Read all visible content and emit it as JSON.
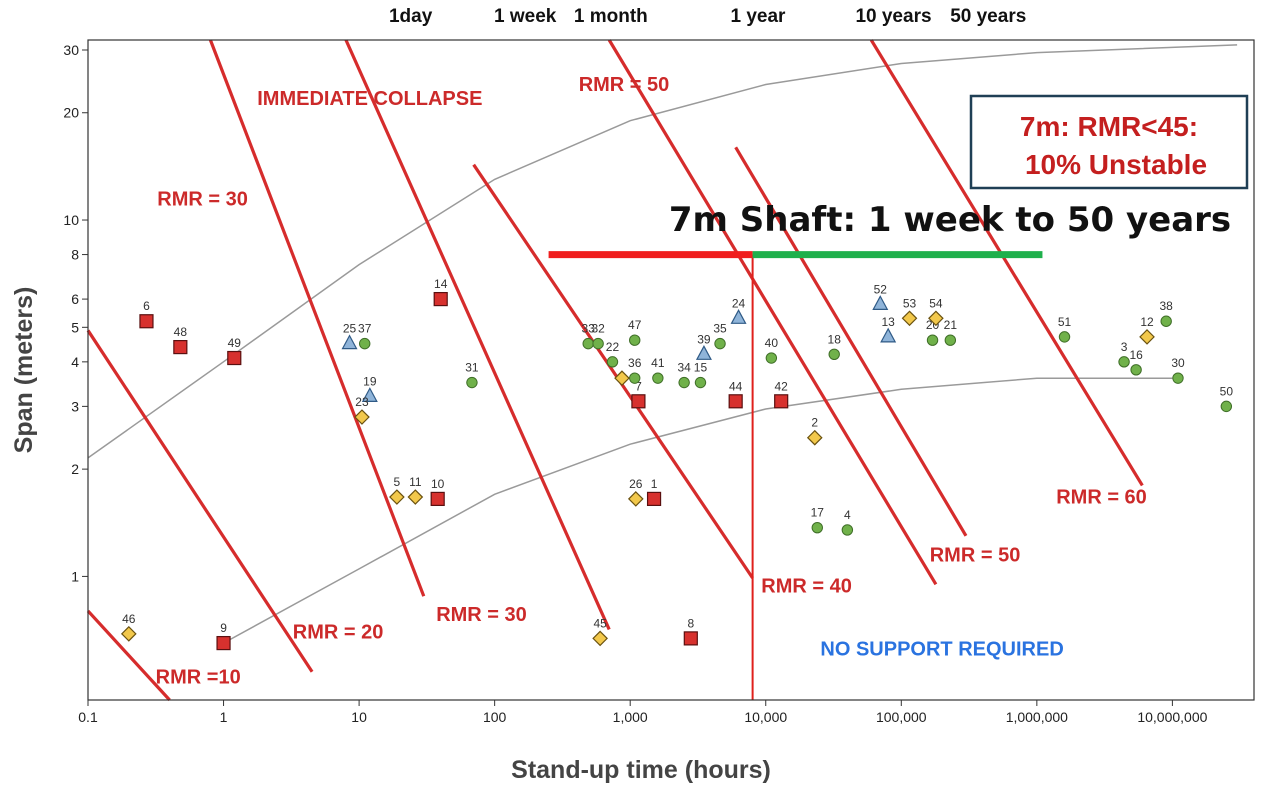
{
  "chart_data": {
    "type": "scatter",
    "xlabel": "Stand-up time (hours)",
    "ylabel": "Span (meters)",
    "xscale": "log",
    "yscale": "log",
    "xlim": [
      0.1,
      40000000
    ],
    "ylim": [
      0.45,
      32
    ],
    "x_ticks": [
      {
        "v": 0.1,
        "label": "0.1"
      },
      {
        "v": 1,
        "label": "1"
      },
      {
        "v": 10,
        "label": "10"
      },
      {
        "v": 100,
        "label": "100"
      },
      {
        "v": 1000,
        "label": "1,000"
      },
      {
        "v": 10000,
        "label": "10,000"
      },
      {
        "v": 100000,
        "label": "100,000"
      },
      {
        "v": 1000000,
        "label": "1,000,000"
      },
      {
        "v": 10000000,
        "label": "10,000,000"
      }
    ],
    "y_ticks": [
      {
        "v": 1,
        "label": "1"
      },
      {
        "v": 2,
        "label": "2"
      },
      {
        "v": 3,
        "label": "3"
      },
      {
        "v": 4,
        "label": "4"
      },
      {
        "v": 5,
        "label": "5"
      },
      {
        "v": 6,
        "label": "6"
      },
      {
        "v": 8,
        "label": "8"
      },
      {
        "v": 10,
        "label": "10"
      },
      {
        "v": 20,
        "label": "20"
      },
      {
        "v": 30,
        "label": "30"
      }
    ],
    "time_labels": [
      {
        "v": 24,
        "label": "1day"
      },
      {
        "v": 168,
        "label": "1 week"
      },
      {
        "v": 720,
        "label": "1 month"
      },
      {
        "v": 8760,
        "label": "1 year"
      },
      {
        "v": 87600,
        "label": "10 years"
      },
      {
        "v": 438000,
        "label": "50 years"
      }
    ],
    "rmr_lines": [
      {
        "x": [
          0.1,
          0.4
        ],
        "y": [
          0.8,
          0.45
        ]
      },
      {
        "x": [
          0.1,
          4.5
        ],
        "y": [
          4.9,
          0.54
        ]
      },
      {
        "x": [
          0.8,
          30
        ],
        "y": [
          32,
          0.88
        ]
      },
      {
        "x": [
          8,
          700
        ],
        "y": [
          32,
          0.71
        ]
      },
      {
        "x": [
          70,
          8000
        ],
        "y": [
          14.3,
          0.99
        ]
      },
      {
        "x": [
          700,
          180000
        ],
        "y": [
          32,
          0.95
        ]
      },
      {
        "x": [
          6000,
          300000
        ],
        "y": [
          16,
          1.3
        ]
      },
      {
        "x": [
          60000,
          6000000
        ],
        "y": [
          32,
          1.8
        ]
      }
    ],
    "rmr_labels": [
      {
        "text": "RMR =10",
        "x": 0.65,
        "y": 0.5
      },
      {
        "text": "RMR = 20",
        "x": 7,
        "y": 0.67
      },
      {
        "text": "RMR = 30",
        "x": 80,
        "y": 0.75
      },
      {
        "text": "RMR = 30",
        "x": 0.7,
        "y": 11
      },
      {
        "text": "RMR = 40",
        "x": 20000,
        "y": 0.9
      },
      {
        "text": "RMR = 50",
        "x": 900,
        "y": 23
      },
      {
        "text": "RMR = 50",
        "x": 350000,
        "y": 1.1
      },
      {
        "text": "RMR = 60",
        "x": 3000000,
        "y": 1.6
      }
    ],
    "region_labels": [
      {
        "text": "IMMEDIATE COLLAPSE",
        "x": 12,
        "y": 21
      },
      {
        "text": "NO SUPPORT REQUIRED",
        "x": 200000,
        "y": 0.6
      }
    ],
    "boundary_curves": [
      {
        "x": [
          0.1,
          1,
          10,
          100,
          1000,
          10000,
          100000,
          1000000,
          30000000
        ],
        "y": [
          2.15,
          4.0,
          7.5,
          13,
          19,
          24,
          27.5,
          29.5,
          31
        ]
      },
      {
        "x": [
          1,
          10,
          100,
          1000,
          10000,
          100000,
          1000000,
          10000000
        ],
        "y": [
          0.65,
          1.05,
          1.7,
          2.35,
          2.95,
          3.35,
          3.6,
          3.6
        ]
      }
    ],
    "series": [
      {
        "name": "",
        "marker": "square",
        "color": "#d7312e",
        "points": [
          {
            "x": 0.27,
            "y": 5.2,
            "label": "6"
          },
          {
            "x": 0.48,
            "y": 4.4,
            "label": "48"
          },
          {
            "x": 1.2,
            "y": 4.1,
            "label": "49"
          },
          {
            "x": 1.0,
            "y": 0.65,
            "label": "9"
          },
          {
            "x": 40,
            "y": 6.0,
            "label": "14"
          },
          {
            "x": 38,
            "y": 1.65,
            "label": "10"
          },
          {
            "x": 1150,
            "y": 3.1,
            "label": "7"
          },
          {
            "x": 1500,
            "y": 1.65,
            "label": "1"
          },
          {
            "x": 6000,
            "y": 3.1,
            "label": "44"
          },
          {
            "x": 13000,
            "y": 3.1,
            "label": "42"
          },
          {
            "x": 2800,
            "y": 0.67,
            "label": "8"
          }
        ]
      },
      {
        "name": "",
        "marker": "circle",
        "color": "#70b14a",
        "points": [
          {
            "x": 11,
            "y": 4.5,
            "label": "37"
          },
          {
            "x": 68,
            "y": 3.5,
            "label": "31"
          },
          {
            "x": 490,
            "y": 4.5,
            "label": "33"
          },
          {
            "x": 580,
            "y": 4.5,
            "label": "32"
          },
          {
            "x": 740,
            "y": 4.0,
            "label": "22"
          },
          {
            "x": 1080,
            "y": 4.6,
            "label": "47"
          },
          {
            "x": 1080,
            "y": 3.6,
            "label": "36"
          },
          {
            "x": 1600,
            "y": 3.6,
            "label": "41"
          },
          {
            "x": 2500,
            "y": 3.5,
            "label": "34"
          },
          {
            "x": 3300,
            "y": 3.5,
            "label": "15"
          },
          {
            "x": 4600,
            "y": 4.5,
            "label": "35"
          },
          {
            "x": 11000,
            "y": 4.1,
            "label": "40"
          },
          {
            "x": 32000,
            "y": 4.2,
            "label": "18"
          },
          {
            "x": 24000,
            "y": 1.37,
            "label": "17"
          },
          {
            "x": 40000,
            "y": 1.35,
            "label": "4"
          },
          {
            "x": 170000,
            "y": 4.6,
            "label": "20"
          },
          {
            "x": 230000,
            "y": 4.6,
            "label": "21"
          },
          {
            "x": 1600000,
            "y": 4.7,
            "label": "51"
          },
          {
            "x": 4400000,
            "y": 4.0,
            "label": "3"
          },
          {
            "x": 5400000,
            "y": 3.8,
            "label": "16"
          },
          {
            "x": 9000000,
            "y": 5.2,
            "label": "38"
          },
          {
            "x": 11000000,
            "y": 3.6,
            "label": "30"
          },
          {
            "x": 25000000,
            "y": 3.0,
            "label": "50"
          }
        ]
      },
      {
        "name": "",
        "marker": "triangle",
        "color": "#8fb4d9",
        "points": [
          {
            "x": 8.5,
            "y": 4.5,
            "label": "25"
          },
          {
            "x": 12,
            "y": 3.2,
            "label": "19"
          },
          {
            "x": 3500,
            "y": 4.2,
            "label": "39"
          },
          {
            "x": 6300,
            "y": 5.3,
            "label": "24"
          },
          {
            "x": 70000,
            "y": 5.8,
            "label": "52"
          },
          {
            "x": 80000,
            "y": 4.7,
            "label": "13"
          }
        ]
      },
      {
        "name": "",
        "marker": "diamond",
        "color": "#f2c84b",
        "points": [
          {
            "x": 0.2,
            "y": 0.69,
            "label": "46"
          },
          {
            "x": 10.5,
            "y": 2.8,
            "label": "23"
          },
          {
            "x": 19,
            "y": 1.67,
            "label": "5"
          },
          {
            "x": 26,
            "y": 1.67,
            "label": "11"
          },
          {
            "x": 870,
            "y": 3.6,
            "label": ""
          },
          {
            "x": 1100,
            "y": 1.65,
            "label": "26"
          },
          {
            "x": 600,
            "y": 0.67,
            "label": "45"
          },
          {
            "x": 23000,
            "y": 2.45,
            "label": "2"
          },
          {
            "x": 115000,
            "y": 5.3,
            "label": "53"
          },
          {
            "x": 180000,
            "y": 5.3,
            "label": "54"
          },
          {
            "x": 6500000,
            "y": 4.7,
            "label": "12"
          }
        ]
      }
    ],
    "shaft_annotation": {
      "title": "7m Shaft:  1 week to 50 years",
      "span": 8,
      "red_segment": [
        250,
        8000
      ],
      "green_segment": [
        8000,
        1100000
      ],
      "vertical_line_x": 8000,
      "box_line1": "7m: RMR<45:",
      "box_line2": "10% Unstable"
    }
  }
}
